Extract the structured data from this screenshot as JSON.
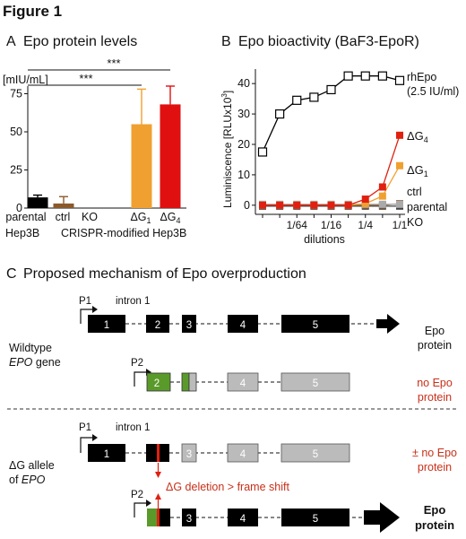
{
  "figure_title": "Figure 1",
  "panel_a": {
    "letter": "A",
    "title": "Epo protein levels",
    "unit": "[mIU/mL]",
    "sig": [
      "***",
      "***"
    ],
    "categories": [
      "parental",
      "ctrl",
      "KO",
      "ΔG",
      "ΔG"
    ],
    "category_subscripts": [
      "",
      "",
      "",
      "1",
      "4"
    ],
    "group_labels": [
      "Hep3B",
      "CRISPR-modified Hep3B"
    ]
  },
  "panel_b": {
    "letter": "B",
    "title": "Epo bioactivity (BaF3-EpoR)",
    "ylabel": "Luminiscence [RLUx10",
    "ylabel_sup": "3",
    "ylabel_end": "]",
    "xlabel": "dilutions",
    "series_labels": {
      "rhEpo": "rhEpo",
      "rhEpo_note": "(2.5 IU/ml)",
      "dg4": "ΔG",
      "dg4_sub": "4",
      "dg1": "ΔG",
      "dg1_sub": "1",
      "ctrl": "ctrl",
      "parental": "parental",
      "ko": "KO"
    }
  },
  "panel_c": {
    "letter": "C",
    "title": "Proposed mechanism of Epo overproduction",
    "wildtype_label_1": "Wildtype",
    "wildtype_label_2": "EPO",
    "wildtype_label_3": " gene",
    "dg_label_1": "ΔG allele",
    "dg_label_2": "of ",
    "dg_label_3": "EPO",
    "p1": "P1",
    "p2": "P2",
    "intron": "intron 1",
    "exons": [
      "1",
      "2",
      "3",
      "4",
      "5"
    ],
    "out_wt1_line1": "Epo",
    "out_wt1_line2": "protein",
    "out_wt2_line1": "no Epo",
    "out_wt2_line2": "protein",
    "out_dg1_line1": "± no Epo",
    "out_dg1_line2": "protein",
    "out_dg2_line1": "Epo",
    "out_dg2_line2": "protein",
    "deletion_note": "ΔG deletion > frame shift"
  },
  "chart_data": [
    {
      "type": "bar",
      "title": "Epo protein levels",
      "ylabel": "[mIU/mL]",
      "categories": [
        "parental Hep3B",
        "ctrl",
        "KO",
        "ΔG1",
        "ΔG4"
      ],
      "values": [
        7,
        3,
        0,
        55,
        68
      ],
      "errors": [
        1.5,
        4.5,
        0,
        23,
        12
      ],
      "colors": [
        "#000000",
        "#8b5a2b",
        "#ffffff",
        "#f0a030",
        "#e01010"
      ],
      "ylim": [
        0,
        80
      ],
      "yticks": [
        0,
        25,
        50,
        75
      ],
      "significance": [
        {
          "from": "parental Hep3B",
          "to": "ΔG1",
          "label": "***"
        },
        {
          "from": "parental Hep3B",
          "to": "ΔG4",
          "label": "***"
        }
      ]
    },
    {
      "type": "line",
      "title": "Epo bioactivity (BaF3-EpoR)",
      "xlabel": "dilutions",
      "ylabel": "Luminiscence [RLUx10^3]",
      "ylim": [
        0,
        43
      ],
      "yticks": [
        0,
        10,
        20,
        30,
        40
      ],
      "xticks": [
        "1/64",
        "1/16",
        "1/4",
        "1/1"
      ],
      "x_exponents": [
        -8,
        -7,
        -6,
        -5,
        -4,
        -3,
        -2,
        -1,
        0
      ],
      "series": [
        {
          "name": "rhEpo (2.5 IU/ml)",
          "color": "#000000",
          "marker": "open-square",
          "values": [
            17.5,
            30,
            34.5,
            35.5,
            38,
            42.5,
            42.5,
            42.5,
            41
          ]
        },
        {
          "name": "ΔG4",
          "color": "#e02010",
          "marker": "square",
          "values": [
            0,
            0,
            0,
            0,
            0,
            0,
            2,
            6,
            23
          ]
        },
        {
          "name": "ΔG1",
          "color": "#f0a030",
          "marker": "square",
          "values": [
            0,
            0,
            0,
            0,
            0,
            0,
            0.5,
            3,
            13
          ]
        },
        {
          "name": "ctrl",
          "color": "#aaaaaa",
          "marker": "square",
          "values": [
            0.3,
            0.3,
            0.3,
            0.3,
            0.3,
            0.3,
            0.3,
            0.3,
            0.3
          ]
        },
        {
          "name": "parental",
          "color": "#8b5a2b",
          "marker": "square",
          "values": [
            0,
            0,
            0,
            0,
            0,
            0,
            0,
            0,
            0.5
          ]
        },
        {
          "name": "KO",
          "color": "#444444",
          "marker": "square",
          "values": [
            -0.3,
            -0.3,
            -0.3,
            -0.3,
            -0.3,
            -0.3,
            -0.3,
            -0.3,
            -0.3
          ]
        }
      ]
    }
  ]
}
